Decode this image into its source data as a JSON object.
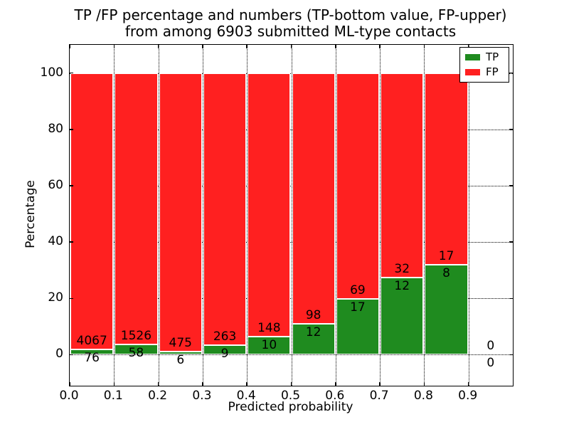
{
  "figure": {
    "title_line1": "TP /FP percentage and numbers (TP-bottom value, FP-upper)",
    "title_line2": "from among 6903 submitted ML-type contacts",
    "xlabel": "Predicted probability",
    "ylabel": "Percentage"
  },
  "legend": {
    "position": "upper-right",
    "items": [
      {
        "label": "TP",
        "color": "#1f8b1f"
      },
      {
        "label": "FP",
        "color": "#ff2020"
      }
    ]
  },
  "chart_data": {
    "type": "bar",
    "stacked": true,
    "normalized_to": 100,
    "title": "TP /FP percentage and numbers (TP-bottom value, FP-upper) from among 6903 submitted ML-type contacts",
    "xlabel": "Predicted probability",
    "ylabel": "Percentage",
    "total_contacts": 6903,
    "bins": [
      0.0,
      0.1,
      0.2,
      0.3,
      0.4,
      0.5,
      0.6,
      0.7,
      0.8,
      0.9
    ],
    "bin_width": 0.1,
    "x_tick_labels": [
      "0.0",
      "0.1",
      "0.2",
      "0.3",
      "0.4",
      "0.5",
      "0.6",
      "0.7",
      "0.8",
      "0.9"
    ],
    "y_ticks": [
      0,
      20,
      40,
      60,
      80,
      100
    ],
    "xlim": [
      0.0,
      1.0
    ],
    "ylim": [
      -11,
      110
    ],
    "grid": true,
    "series": [
      {
        "name": "TP",
        "color": "#1f8b1f",
        "counts": [
          76,
          58,
          6,
          9,
          10,
          12,
          17,
          12,
          8,
          0
        ]
      },
      {
        "name": "FP",
        "color": "#ff2020",
        "counts": [
          4067,
          1526,
          475,
          263,
          148,
          98,
          69,
          32,
          17,
          0
        ]
      }
    ],
    "tp_percent": [
      1.83,
      3.66,
      1.25,
      3.31,
      6.33,
      10.91,
      19.77,
      27.27,
      32.0,
      0.0
    ],
    "colors": {
      "background": "#ffffff",
      "text": "#000000",
      "grid": "#000000"
    }
  }
}
